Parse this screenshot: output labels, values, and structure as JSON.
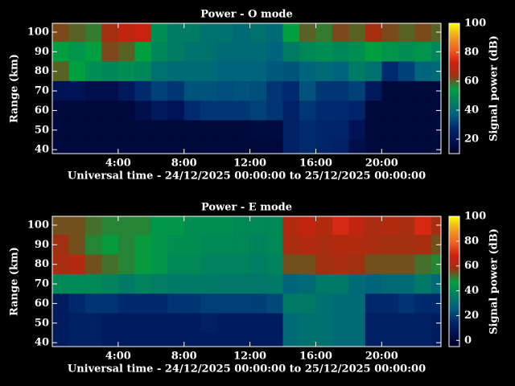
{
  "chart_data": [
    {
      "type": "heatmap",
      "title": "Power - O mode",
      "x_label": "Universal time - 24/12/2025 00:00:00 to 25/12/2025 00:00:00",
      "y_label": "Range (km)",
      "colorbar_label": "Signal power (dB)",
      "x": [
        0.5,
        1.5,
        2.5,
        3.5,
        4.5,
        5.5,
        6.5,
        7.5,
        8.5,
        9.5,
        10.5,
        11.5,
        12.5,
        13.5,
        14.5,
        15.5,
        16.5,
        17.5,
        18.5,
        19.5,
        20.5,
        21.5,
        22.5,
        23.5
      ],
      "y": [
        100,
        90,
        80,
        70,
        60,
        50,
        40
      ],
      "z": [
        [
          62,
          60,
          58,
          65,
          70,
          72,
          50,
          45,
          45,
          42,
          42,
          40,
          42,
          40,
          55,
          60,
          58,
          62,
          60,
          65,
          62,
          60,
          62,
          60
        ],
        [
          55,
          52,
          55,
          62,
          60,
          55,
          48,
          45,
          42,
          42,
          40,
          40,
          40,
          38,
          45,
          48,
          50,
          48,
          50,
          55,
          52,
          50,
          52,
          48
        ],
        [
          60,
          55,
          50,
          48,
          50,
          48,
          42,
          40,
          40,
          40,
          38,
          38,
          38,
          36,
          35,
          38,
          40,
          38,
          45,
          42,
          28,
          32,
          38,
          40
        ],
        [
          20,
          20,
          18,
          18,
          22,
          28,
          32,
          30,
          35,
          35,
          34,
          35,
          34,
          30,
          28,
          35,
          30,
          30,
          32,
          22,
          15,
          15,
          15,
          15
        ],
        [
          15,
          15,
          15,
          15,
          15,
          18,
          22,
          20,
          28,
          30,
          30,
          30,
          32,
          30,
          25,
          30,
          28,
          28,
          26,
          15,
          15,
          15,
          15,
          15
        ],
        [
          15,
          15,
          15,
          15,
          15,
          15,
          15,
          15,
          15,
          15,
          15,
          15,
          16,
          16,
          25,
          28,
          26,
          26,
          20,
          15,
          15,
          15,
          15,
          15
        ],
        [
          15,
          15,
          15,
          15,
          15,
          15,
          15,
          15,
          15,
          15,
          15,
          15,
          15,
          15,
          25,
          28,
          26,
          25,
          18,
          15,
          15,
          15,
          15,
          15
        ]
      ],
      "xlim": [
        0,
        23.6
      ],
      "ylim": [
        38,
        104.5
      ],
      "xticks": [
        {
          "value": 4,
          "label": "4:00"
        },
        {
          "value": 8,
          "label": "8:00"
        },
        {
          "value": 12,
          "label": "12:00"
        },
        {
          "value": 16,
          "label": "16:00"
        },
        {
          "value": 20,
          "label": "20:00"
        }
      ],
      "yticks": [
        40,
        50,
        60,
        70,
        80,
        90,
        100
      ],
      "clim": [
        10,
        100
      ],
      "cticks": [
        20,
        40,
        60,
        80,
        100
      ],
      "colormap": [
        "#000020",
        "#001050",
        "#002a70",
        "#006080",
        "#008060",
        "#00a040",
        "#a03010",
        "#d02010",
        "#f06020",
        "#f0a020",
        "#ffff00"
      ]
    },
    {
      "type": "heatmap",
      "title": "Power - E mode",
      "x_label": "Universal time - 24/12/2025 00:00:00 to 25/12/2025 00:00:00",
      "y_label": "Range (km)",
      "colorbar_label": "Signal power (dB)",
      "x": [
        0.5,
        1.5,
        2.5,
        3.5,
        4.5,
        5.5,
        6.5,
        7.5,
        8.5,
        9.5,
        10.5,
        11.5,
        12.5,
        13.5,
        14.5,
        15.5,
        16.5,
        17.5,
        18.5,
        19.5,
        20.5,
        21.5,
        22.5,
        23.5
      ],
      "y": [
        100,
        90,
        80,
        70,
        60,
        50,
        40
      ],
      "z": [
        [
          55,
          55,
          52,
          50,
          50,
          50,
          45,
          45,
          42,
          42,
          42,
          40,
          40,
          40,
          62,
          65,
          62,
          70,
          65,
          60,
          62,
          60,
          70,
          60
        ],
        [
          58,
          55,
          50,
          48,
          50,
          48,
          45,
          42,
          42,
          40,
          40,
          40,
          38,
          40,
          60,
          62,
          60,
          62,
          62,
          60,
          58,
          58,
          60,
          55
        ],
        [
          60,
          62,
          55,
          52,
          50,
          48,
          45,
          40,
          40,
          38,
          38,
          38,
          36,
          38,
          55,
          55,
          58,
          60,
          58,
          55,
          55,
          55,
          52,
          50
        ],
        [
          40,
          40,
          40,
          38,
          35,
          38,
          36,
          35,
          35,
          35,
          34,
          34,
          34,
          35,
          28,
          30,
          35,
          35,
          30,
          28,
          30,
          30,
          35,
          30
        ],
        [
          10,
          15,
          18,
          18,
          15,
          15,
          15,
          18,
          18,
          20,
          20,
          20,
          20,
          22,
          35,
          35,
          32,
          30,
          30,
          15,
          15,
          18,
          15,
          15
        ],
        [
          10,
          12,
          12,
          10,
          10,
          10,
          10,
          10,
          10,
          12,
          10,
          10,
          10,
          10,
          30,
          32,
          32,
          30,
          30,
          12,
          12,
          12,
          12,
          10
        ],
        [
          10,
          12,
          12,
          10,
          10,
          10,
          10,
          10,
          10,
          10,
          10,
          10,
          10,
          10,
          30,
          32,
          32,
          30,
          30,
          12,
          12,
          12,
          12,
          10
        ]
      ],
      "xlim": [
        0,
        23.6
      ],
      "ylim": [
        38,
        104.5
      ],
      "xticks": [
        {
          "value": 4,
          "label": "4:00"
        },
        {
          "value": 8,
          "label": "8:00"
        },
        {
          "value": 12,
          "label": "12:00"
        },
        {
          "value": 16,
          "label": "16:00"
        },
        {
          "value": 20,
          "label": "20:00"
        }
      ],
      "yticks": [
        40,
        50,
        60,
        70,
        80,
        90,
        100
      ],
      "clim": [
        -5,
        100
      ],
      "cticks": [
        0,
        20,
        40,
        60,
        80,
        100
      ],
      "colormap": [
        "#000020",
        "#001050",
        "#002a70",
        "#006080",
        "#008060",
        "#00a040",
        "#a03010",
        "#d02010",
        "#f06020",
        "#f0a020",
        "#ffff00"
      ]
    }
  ]
}
